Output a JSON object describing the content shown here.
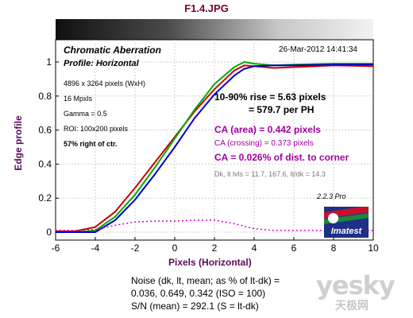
{
  "file_title": "F1.4.JPG",
  "header": {
    "title": "Chromatic Aberration",
    "subtitle": "Profile: Horizontal",
    "timestamp": "26-Mar-2012 14:41:34"
  },
  "info": {
    "line1": "4896 x 3264 pixels (WxH)",
    "line2": "16 Mpxls",
    "line3": "Gamma = 0.5",
    "line4": "ROI: 100x200 pixels",
    "line5": "57% right of ctr."
  },
  "results": {
    "rise": "10-90% rise = 5.63 pixels",
    "per_ph": "= 579.7 per PH",
    "ca_area": "CA (area) = 0.442 pixels",
    "ca_crossing": "CA (crossing) = 0.373 pixels",
    "ca_dist": "CA = 0.026% of dist. to corner",
    "levels": "Dk, lt lvls = 11.7, 167.6,  lt/dk = 14.3"
  },
  "version": "2.2.3  Pro",
  "logo": {
    "word": "Imatest"
  },
  "noise": {
    "line1": "Noise (dk, lt, mean; as % of lt-dk) =",
    "line2": "0.036,  0.649,  0.342  (ISO =  100)",
    "line3": "S/N (mean) = 292.1  (S = lt-dk)"
  },
  "watermark": {
    "main": "yesky",
    "sub": "天极网"
  },
  "colors": {
    "red": "#cc0000",
    "green": "#00aa00",
    "blue": "#0000cc",
    "ca_diff": "#cc00cc",
    "axis_label": "#5a0a5a"
  },
  "chart_data": {
    "type": "line",
    "xlabel": "Pixels (Horizontal)",
    "ylabel": "Edge profile",
    "xlim": [
      -6,
      10
    ],
    "ylim": [
      0,
      1
    ],
    "xticks": [
      -6,
      -4,
      -2,
      0,
      2,
      4,
      6,
      8,
      10
    ],
    "yticks": [
      0,
      0.2,
      0.4,
      0.6,
      0.8,
      1
    ],
    "grid": true,
    "series": [
      {
        "key": "red",
        "points": [
          [
            -6,
            0.005
          ],
          [
            -5,
            0.006
          ],
          [
            -4,
            0.03
          ],
          [
            -3,
            0.12
          ],
          [
            -2,
            0.26
          ],
          [
            -1,
            0.41
          ],
          [
            0,
            0.56
          ],
          [
            1,
            0.71
          ],
          [
            2,
            0.84
          ],
          [
            3,
            0.95
          ],
          [
            3.5,
            0.98
          ],
          [
            4,
            0.975
          ],
          [
            5,
            0.965
          ],
          [
            6,
            0.97
          ],
          [
            8,
            0.98
          ],
          [
            10,
            0.975
          ]
        ]
      },
      {
        "key": "green",
        "points": [
          [
            -6,
            0.0
          ],
          [
            -5,
            0.0
          ],
          [
            -4,
            0.01
          ],
          [
            -3,
            0.09
          ],
          [
            -2,
            0.22
          ],
          [
            -1,
            0.38
          ],
          [
            0,
            0.55
          ],
          [
            1,
            0.72
          ],
          [
            2,
            0.87
          ],
          [
            3,
            0.97
          ],
          [
            3.5,
            1.0
          ],
          [
            4,
            0.99
          ],
          [
            5,
            0.98
          ],
          [
            6,
            0.985
          ],
          [
            8,
            0.99
          ],
          [
            10,
            0.99
          ]
        ]
      },
      {
        "key": "blue",
        "points": [
          [
            -6,
            0.0
          ],
          [
            -5,
            0.0
          ],
          [
            -4,
            0.0
          ],
          [
            -3,
            0.07
          ],
          [
            -2,
            0.19
          ],
          [
            -1,
            0.34
          ],
          [
            0,
            0.5
          ],
          [
            1,
            0.67
          ],
          [
            2,
            0.81
          ],
          [
            3,
            0.92
          ],
          [
            3.5,
            0.96
          ],
          [
            4,
            0.975
          ],
          [
            5,
            0.98
          ],
          [
            6,
            0.98
          ],
          [
            8,
            0.985
          ],
          [
            10,
            0.985
          ]
        ]
      },
      {
        "key": "ca_diff",
        "dashed": true,
        "points": [
          [
            -6,
            0.01
          ],
          [
            -5,
            0.01
          ],
          [
            -4,
            0.015
          ],
          [
            -3,
            0.04
          ],
          [
            -2,
            0.06
          ],
          [
            -1,
            0.065
          ],
          [
            0,
            0.065
          ],
          [
            1,
            0.07
          ],
          [
            2,
            0.07
          ],
          [
            3,
            0.05
          ],
          [
            4,
            0.02
          ],
          [
            5,
            0.01
          ],
          [
            6,
            0.01
          ],
          [
            8,
            0.01
          ],
          [
            10,
            0.01
          ]
        ]
      }
    ]
  }
}
